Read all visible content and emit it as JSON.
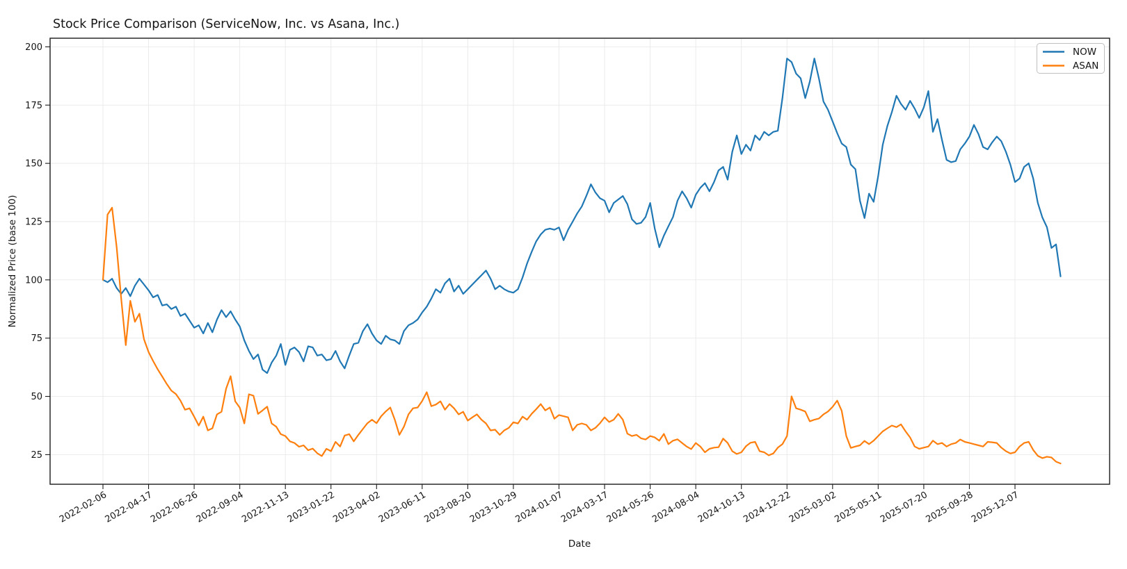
{
  "chart_data": {
    "type": "line",
    "title": "Stock Price Comparison (ServiceNow, Inc. vs Asana, Inc.)",
    "xlabel": "Date",
    "ylabel": "Normalized Price (base 100)",
    "ylim": [
      12.3,
      203.7
    ],
    "yticks": [
      25,
      50,
      75,
      100,
      125,
      150,
      175,
      200
    ],
    "grid": true,
    "legend_position": "upper right",
    "background_color": "#ffffff",
    "x_tick_step": 10,
    "x_tick_labels": [
      "2022-02-06",
      "2022-04-17",
      "2022-06-26",
      "2022-09-04",
      "2022-11-13",
      "2023-01-22",
      "2023-04-02",
      "2023-06-11",
      "2023-08-20",
      "2023-10-29",
      "2024-01-07",
      "2024-03-17",
      "2024-05-26",
      "2024-08-04",
      "2024-10-13",
      "2024-12-22",
      "2025-03-02",
      "2025-05-11",
      "2025-07-20",
      "2025-09-28",
      "2025-12-07"
    ],
    "series": [
      {
        "name": "NOW",
        "color": "#1f77b4",
        "values": [
          100,
          99,
          100.5,
          96.5,
          94,
          96.5,
          93,
          97.5,
          100.5,
          98,
          95.5,
          92.5,
          93.5,
          89,
          89.5,
          87.5,
          88.5,
          84.5,
          85.5,
          82.5,
          79.5,
          80.5,
          77,
          81.5,
          77.5,
          83,
          87,
          84,
          86.5,
          83,
          80,
          74,
          69.5,
          66,
          68,
          61.5,
          60,
          64.5,
          67.5,
          72.5,
          63.5,
          70,
          71,
          69,
          65,
          71.5,
          71,
          67.5,
          68,
          65.5,
          66,
          69.5,
          65,
          62,
          67.5,
          72.5,
          73,
          78,
          81,
          77,
          74,
          72.5,
          76,
          74.5,
          74,
          72.5,
          78,
          80.5,
          81.5,
          83,
          86,
          88.5,
          92,
          96,
          94.5,
          98.5,
          100.5,
          95,
          97.5,
          94,
          96,
          98,
          100,
          102,
          104,
          100.5,
          96,
          97.5,
          96,
          95,
          94.5,
          96,
          101,
          107,
          112,
          116.5,
          119.5,
          121.5,
          122,
          121.5,
          122.5,
          117,
          121.5,
          125,
          128.5,
          131.5,
          136,
          141,
          137.5,
          135,
          134,
          129,
          133,
          134.5,
          136,
          132.5,
          126,
          124,
          124.5,
          127,
          133,
          122,
          114,
          119,
          123,
          127,
          134,
          138,
          135,
          131,
          136.5,
          139.5,
          141.5,
          138,
          142,
          147,
          148.5,
          143,
          155,
          162,
          154,
          158,
          155.5,
          162,
          160,
          163.5,
          162,
          163.5,
          164,
          178,
          195,
          193.5,
          188.5,
          186.5,
          178,
          185,
          195,
          186.5,
          176.5,
          173,
          168,
          163,
          158.5,
          157,
          149.5,
          147.5,
          134,
          126.5,
          137,
          133.5,
          144.5,
          158,
          166,
          172,
          179,
          175.5,
          173,
          176.8,
          173.5,
          169.5,
          174,
          181,
          163.5,
          169,
          160,
          151.5,
          150.5,
          151,
          156,
          158.5,
          161.5,
          166.5,
          162.5,
          157,
          156,
          159,
          161.5,
          159.5,
          155,
          149.4,
          142,
          143.5,
          148.5,
          150,
          143.5,
          133,
          126.8,
          122.6,
          113.7,
          115.2,
          101.5
        ]
      },
      {
        "name": "ASAN",
        "color": "#ff7f0e",
        "values": [
          100,
          128,
          131,
          114,
          92,
          72,
          91,
          82,
          85.5,
          74.5,
          69,
          65.2,
          61.6,
          58.5,
          55.3,
          52.5,
          51,
          48.2,
          44.3,
          44.9,
          41.3,
          37.5,
          41.3,
          35.4,
          36.3,
          42.3,
          43.4,
          53.3,
          58.7,
          47.9,
          45.2,
          38.4,
          50.9,
          50.3,
          42.5,
          44,
          45.6,
          38.4,
          37,
          33.8,
          33,
          30.7,
          30,
          28.4,
          29,
          26.9,
          27.6,
          25.6,
          24.4,
          27.5,
          26.5,
          30.5,
          28.5,
          33.2,
          33.8,
          30.7,
          33.5,
          36,
          38.5,
          40,
          38.5,
          41.5,
          43.5,
          45.2,
          40,
          33.5,
          37,
          42.3,
          44.9,
          45.2,
          48,
          51.8,
          45.8,
          46.5,
          47.9,
          44.3,
          46.7,
          44.9,
          42.3,
          43.4,
          39.6,
          41,
          42.3,
          40,
          38.4,
          35.4,
          35.7,
          33.5,
          35.4,
          36.5,
          38.9,
          38.4,
          41.3,
          40,
          42.5,
          44.5,
          46.7,
          44,
          45.2,
          40.4,
          42,
          41.5,
          41,
          35.4,
          37.8,
          38.4,
          37.8,
          35.4,
          36.5,
          38.5,
          41,
          39,
          40,
          42.5,
          40,
          34,
          33,
          33.5,
          32,
          31.5,
          33,
          32.4,
          31,
          33.9,
          29.5,
          31,
          31.6,
          30,
          28.5,
          27.4,
          30,
          28.5,
          26,
          27.5,
          28,
          28.2,
          31.9,
          30,
          26.5,
          25.3,
          26,
          28.6,
          30.1,
          30.5,
          26.5,
          26,
          24.7,
          25.5,
          28,
          29.5,
          33,
          50,
          44.9,
          44.3,
          43.5,
          39.3,
          40,
          40.5,
          42.3,
          43.5,
          45.5,
          48.2,
          43.8,
          33,
          27.9,
          28.5,
          29,
          30.9,
          29.5,
          31,
          33,
          35,
          36.3,
          37.5,
          36.8,
          38,
          35,
          32.4,
          28.5,
          27.5,
          28,
          28.5,
          31,
          29.5,
          30,
          28.5,
          29.5,
          30,
          31.5,
          30.5,
          30,
          29.5,
          29,
          28.5,
          30.5,
          30.3,
          30,
          28,
          26.5,
          25.5,
          26,
          28.5,
          30,
          30.5,
          27,
          24.5,
          23.5,
          24.1,
          23.8,
          22,
          21.2
        ]
      }
    ]
  }
}
